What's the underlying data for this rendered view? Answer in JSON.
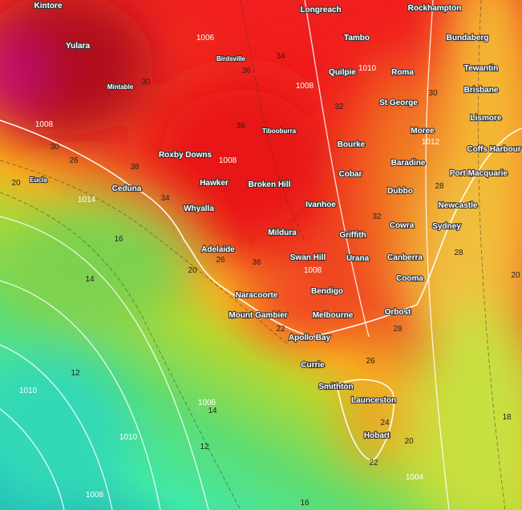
{
  "cities": [
    "Kintore",
    "Longreach",
    "Rockhampton",
    "Yulara",
    "Tambo",
    "Bundaberg",
    "Birdsville",
    "Tewantin",
    "Mintable",
    "Quilpie",
    "Roma",
    "Brisbane",
    "St George",
    "Lismore",
    "Tibooburra",
    "Moree",
    "Bourke",
    "Coffs Harbour",
    "Roxby Downs",
    "Cobar",
    "Baradine",
    "Port Macquarie",
    "Eucla",
    "Ceduna",
    "Hawker",
    "Broken Hill",
    "Dubbo",
    "Whyalla",
    "Ivanhoe",
    "Newcastle",
    "Cowra",
    "Sydney",
    "Mildura",
    "Griffith",
    "Adelaide",
    "Swan Hill",
    "Urana",
    "Canberra",
    "Cooma",
    "Naracoorte",
    "Bendigo",
    "Orbost",
    "Mount Gambier",
    "Melbourne",
    "Apollo Bay",
    "Currie",
    "Smithton",
    "Launceston",
    "Hobart"
  ],
  "isotherm_labels": [
    "34",
    "36",
    "30",
    "32",
    "30",
    "30",
    "26",
    "38",
    "36",
    "34",
    "32",
    "28",
    "20",
    "16",
    "14",
    "12",
    "36",
    "26",
    "20",
    "22",
    "28",
    "26",
    "24",
    "22",
    "20",
    "18",
    "16",
    "14",
    "12",
    "28",
    "20"
  ],
  "isobar_labels": [
    "1006",
    "1008",
    "1010",
    "1008",
    "1008",
    "1012",
    "1014",
    "1010",
    "1008",
    "1006",
    "1008",
    "1004",
    "1010"
  ]
}
